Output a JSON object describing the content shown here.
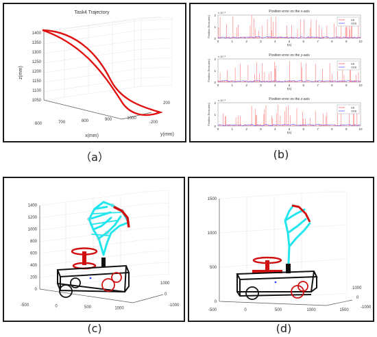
{
  "captions": {
    "a": "（a）",
    "b": "(b)",
    "c": "(c)",
    "d": "(d)"
  },
  "colors": {
    "trajectory": "#e01010",
    "de": "#ff5a5a",
    "ode": "#5a5aff",
    "robot_cyan": "#22e5ee",
    "wheel_red": "#e01010"
  },
  "chart_data": [
    {
      "id": "a",
      "type": "line",
      "title": "Task4 Trajectory",
      "xlabel": "x(mm)",
      "ylabel": "y(mm)",
      "zlabel": "z(mm)",
      "x_ticks": [
        "600",
        "700",
        "800",
        "900",
        "1000"
      ],
      "y_ticks": [
        "-200",
        "0",
        "200"
      ],
      "z_ticks": [
        "1050",
        "1100",
        "1150",
        "1200",
        "1250",
        "1300",
        "1350",
        "1400"
      ],
      "z_range": [
        1050,
        1400
      ],
      "grid": true
    },
    {
      "id": "b",
      "type": "line",
      "legend": "top-right",
      "subplots": [
        {
          "title": "Position error on the x-axis",
          "ylabel": "Position Error(mm)",
          "xlabel": "t(s)",
          "exponent": "x 10⁻³",
          "y_ticks": [
            "0",
            "1",
            "2"
          ],
          "x_ticks": [
            "0",
            "1",
            "2",
            "3",
            "4",
            "5",
            "6",
            "7",
            "8",
            "9",
            "10"
          ],
          "series": [
            {
              "name": "DE"
            },
            {
              "name": "ODE"
            }
          ]
        },
        {
          "title": "Position error on the y-axis",
          "ylabel": "Position Error(mm)",
          "xlabel": "t(s)",
          "exponent": "x 10⁻³",
          "y_ticks": [
            "0",
            "1",
            "2"
          ],
          "x_ticks": [
            "0",
            "1",
            "2",
            "3",
            "4",
            "5",
            "6",
            "7",
            "8",
            "9",
            "10"
          ],
          "series": [
            {
              "name": "DE"
            },
            {
              "name": "ODE"
            }
          ]
        },
        {
          "title": "Position error on the z-axis",
          "ylabel": "Position Error(mm)",
          "xlabel": "t(s)",
          "exponent": "x 10⁻³",
          "y_ticks": [
            "0",
            "1",
            "2"
          ],
          "x_ticks": [
            "0",
            "1",
            "2",
            "3",
            "4",
            "5",
            "6",
            "7",
            "8",
            "9",
            "10"
          ],
          "series": [
            {
              "name": "DE"
            },
            {
              "name": "ODE"
            }
          ]
        }
      ]
    },
    {
      "id": "c",
      "type": "scatter",
      "z_ticks": [
        "0",
        "200",
        "400",
        "600",
        "800",
        "1000",
        "1200",
        "1400"
      ],
      "x_ticks": [
        "-500",
        "0",
        "500",
        "1000"
      ],
      "y_ticks": [
        "1000",
        "0",
        "-1000"
      ]
    },
    {
      "id": "d",
      "type": "scatter",
      "z_ticks": [
        "0",
        "500",
        "1000",
        "1500"
      ],
      "x_ticks": [
        "-500",
        "0",
        "500",
        "1000",
        "1500"
      ],
      "y_ticks": [
        "1000",
        "0",
        "-1000"
      ]
    }
  ]
}
